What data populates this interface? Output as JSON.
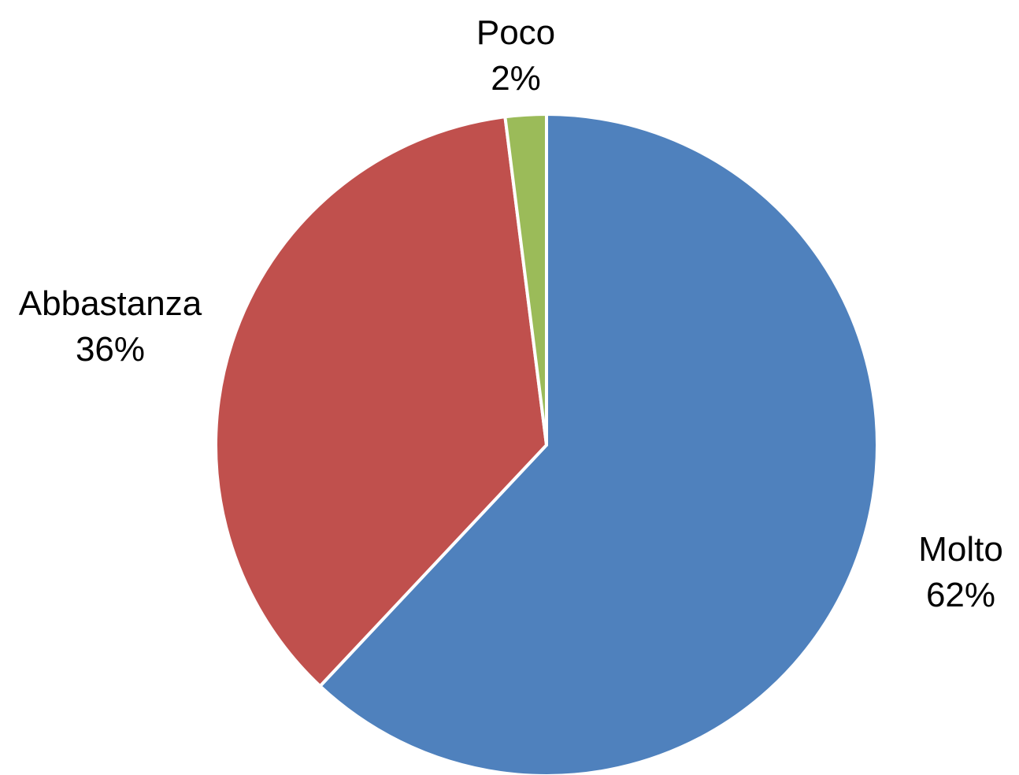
{
  "chart_data": {
    "type": "pie",
    "title": "",
    "categories": [
      "Molto",
      "Abbastanza",
      "Poco"
    ],
    "values": [
      62,
      36,
      2
    ],
    "data_labels": [
      "62%",
      "36%",
      "2%"
    ],
    "colors": [
      "#4F81BD",
      "#C0504D",
      "#9BBB59"
    ],
    "start_angle": "12 o'clock",
    "direction": "clockwise",
    "legend": "none"
  }
}
